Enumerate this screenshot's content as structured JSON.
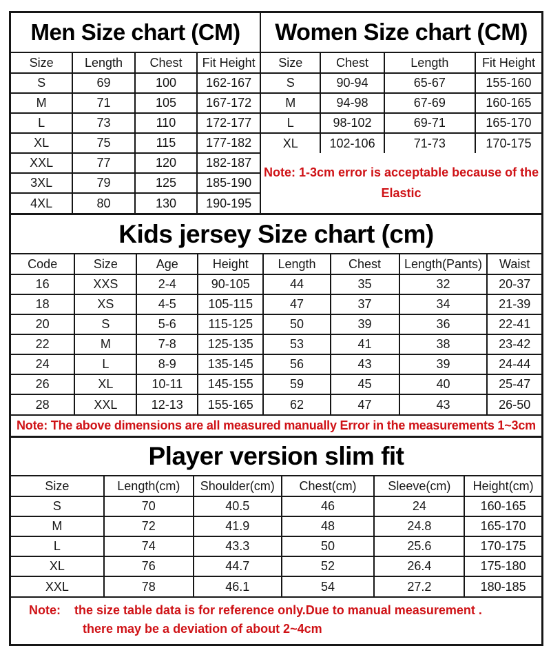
{
  "page": {
    "background": "#ffffff",
    "text_color": "#161616",
    "note_red": "#cf1216"
  },
  "men": {
    "title": "Men Size chart (CM)",
    "columns": [
      "Size",
      "Length",
      "Chest",
      "Fit Height"
    ],
    "rows": [
      [
        "S",
        "69",
        "100",
        "162-167"
      ],
      [
        "M",
        "71",
        "105",
        "167-172"
      ],
      [
        "L",
        "73",
        "110",
        "172-177"
      ],
      [
        "XL",
        "75",
        "115",
        "177-182"
      ],
      [
        "XXL",
        "77",
        "120",
        "182-187"
      ],
      [
        "3XL",
        "79",
        "125",
        "185-190"
      ],
      [
        "4XL",
        "80",
        "130",
        "190-195"
      ]
    ]
  },
  "women": {
    "title": "Women Size chart (CM)",
    "columns": [
      "Size",
      "Chest",
      "Length",
      "Fit Height"
    ],
    "rows": [
      [
        "S",
        "90-94",
        "65-67",
        "155-160"
      ],
      [
        "M",
        "94-98",
        "67-69",
        "160-165"
      ],
      [
        "L",
        "98-102",
        "69-71",
        "165-170"
      ],
      [
        "XL",
        "102-106",
        "71-73",
        "170-175"
      ]
    ],
    "note_line1": "Note: 1-3cm error is acceptable because of the",
    "note_line2": "Elastic"
  },
  "kids": {
    "title": "Kids jersey Size chart (cm)",
    "columns": [
      "Code",
      "Size",
      "Age",
      "Height",
      "Length",
      "Chest",
      "Length(Pants)",
      "Waist"
    ],
    "rows": [
      [
        "16",
        "XXS",
        "2-4",
        "90-105",
        "44",
        "35",
        "32",
        "20-37"
      ],
      [
        "18",
        "XS",
        "4-5",
        "105-115",
        "47",
        "37",
        "34",
        "21-39"
      ],
      [
        "20",
        "S",
        "5-6",
        "115-125",
        "50",
        "39",
        "36",
        "22-41"
      ],
      [
        "22",
        "M",
        "7-8",
        "125-135",
        "53",
        "41",
        "38",
        "23-42"
      ],
      [
        "24",
        "L",
        "8-9",
        "135-145",
        "56",
        "43",
        "39",
        "24-44"
      ],
      [
        "26",
        "XL",
        "10-11",
        "145-155",
        "59",
        "45",
        "40",
        "25-47"
      ],
      [
        "28",
        "XXL",
        "12-13",
        "155-165",
        "62",
        "47",
        "43",
        "26-50"
      ]
    ],
    "note": "Note: The above dimensions are all measured manually Error in the measurements 1~3cm"
  },
  "player": {
    "title": "Player version slim fit",
    "columns": [
      "Size",
      "Length(cm)",
      "Shoulder(cm)",
      "Chest(cm)",
      "Sleeve(cm)",
      "Height(cm)"
    ],
    "rows": [
      [
        "S",
        "70",
        "40.5",
        "46",
        "24",
        "160-165"
      ],
      [
        "M",
        "72",
        "41.9",
        "48",
        "24.8",
        "165-170"
      ],
      [
        "L",
        "74",
        "43.3",
        "50",
        "25.6",
        "170-175"
      ],
      [
        "XL",
        "76",
        "44.7",
        "52",
        "26.4",
        "175-180"
      ],
      [
        "XXL",
        "78",
        "46.1",
        "54",
        "27.2",
        "180-185"
      ]
    ],
    "note_line1": "Note:    the size table data is for reference only.Due to manual measurement .",
    "note_line2": "there may be a deviation of about 2~4cm"
  }
}
